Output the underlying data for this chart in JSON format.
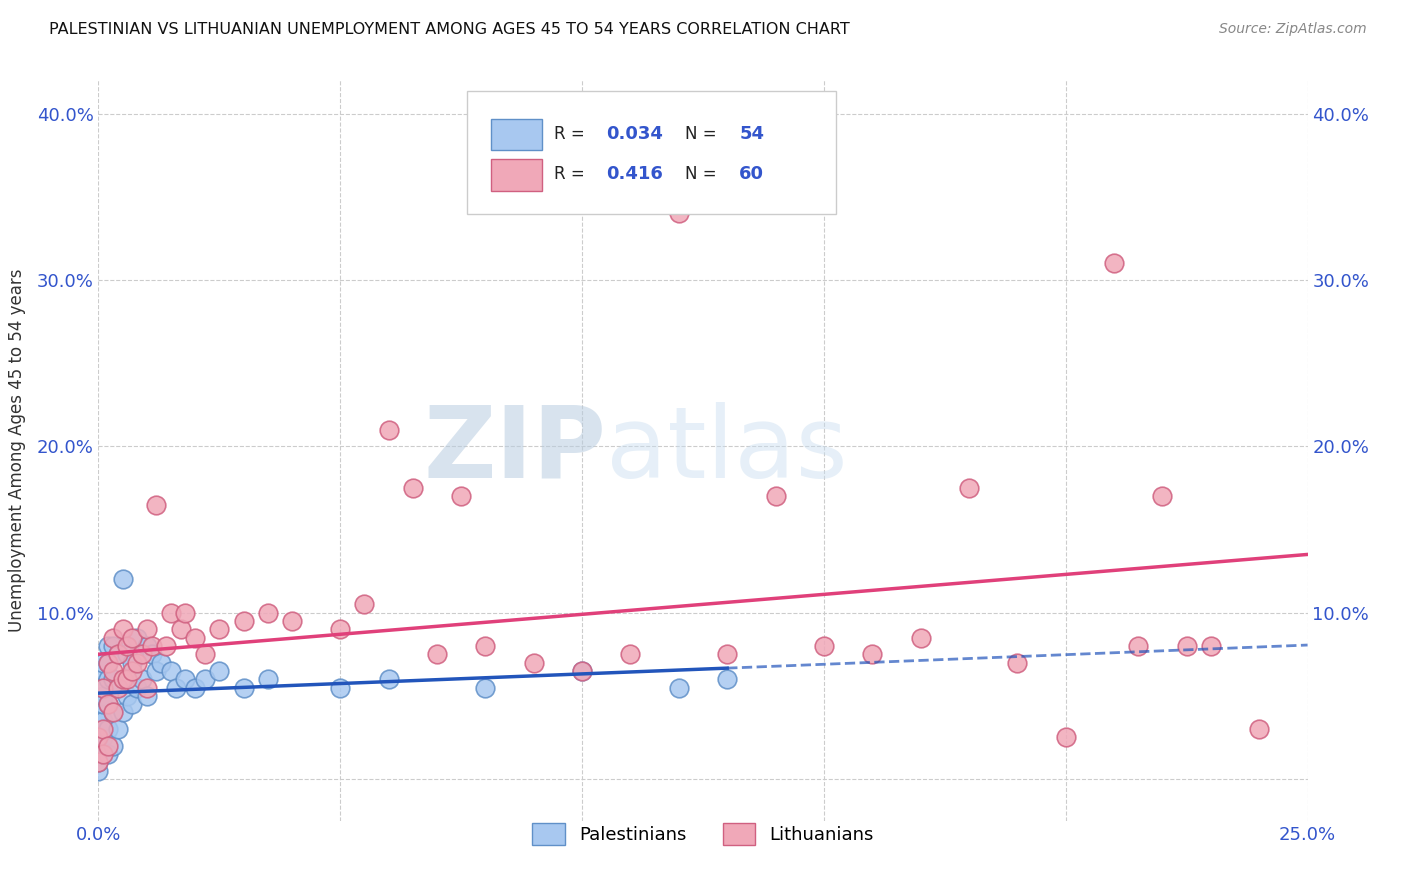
{
  "title": "PALESTINIAN VS LITHUANIAN UNEMPLOYMENT AMONG AGES 45 TO 54 YEARS CORRELATION CHART",
  "source": "Source: ZipAtlas.com",
  "ylabel": "Unemployment Among Ages 45 to 54 years",
  "xlim": [
    0.0,
    0.25
  ],
  "ylim": [
    -0.025,
    0.42
  ],
  "xtick_positions": [
    0.0,
    0.05,
    0.1,
    0.15,
    0.2,
    0.25
  ],
  "xtick_labels": [
    "0.0%",
    "",
    "",
    "",
    "",
    "25.0%"
  ],
  "ytick_positions": [
    0.0,
    0.1,
    0.2,
    0.3,
    0.4
  ],
  "ytick_labels_left": [
    "",
    "10.0%",
    "20.0%",
    "30.0%",
    "40.0%"
  ],
  "ytick_labels_right": [
    "",
    "10.0%",
    "20.0%",
    "30.0%",
    "40.0%"
  ],
  "pal_color": "#a8c8f0",
  "pal_edge_color": "#6090c8",
  "lith_color": "#f0a8b8",
  "lith_edge_color": "#d06080",
  "pal_line_color": "#2255bb",
  "lith_line_color": "#e0407a",
  "background_color": "#ffffff",
  "grid_color": "#cccccc",
  "watermark_color": "#d0dff0",
  "legend_text_color": "#3355cc",
  "legend_label_color": "#111111",
  "title_color": "#111111",
  "source_color": "#888888",
  "tick_color": "#3355cc",
  "palestinians_x": [
    0.0,
    0.0,
    0.0,
    0.0,
    0.0,
    0.001,
    0.001,
    0.001,
    0.001,
    0.001,
    0.001,
    0.001,
    0.001,
    0.002,
    0.002,
    0.002,
    0.002,
    0.002,
    0.002,
    0.003,
    0.003,
    0.003,
    0.003,
    0.004,
    0.004,
    0.004,
    0.005,
    0.005,
    0.006,
    0.006,
    0.007,
    0.007,
    0.008,
    0.008,
    0.009,
    0.01,
    0.01,
    0.011,
    0.012,
    0.013,
    0.015,
    0.016,
    0.018,
    0.02,
    0.022,
    0.025,
    0.03,
    0.035,
    0.05,
    0.06,
    0.08,
    0.1,
    0.12,
    0.13
  ],
  "palestinians_y": [
    0.005,
    0.01,
    0.02,
    0.03,
    0.04,
    0.015,
    0.025,
    0.035,
    0.045,
    0.05,
    0.055,
    0.065,
    0.07,
    0.015,
    0.03,
    0.045,
    0.06,
    0.07,
    0.08,
    0.02,
    0.04,
    0.06,
    0.08,
    0.03,
    0.055,
    0.075,
    0.04,
    0.12,
    0.05,
    0.075,
    0.045,
    0.07,
    0.055,
    0.085,
    0.06,
    0.05,
    0.08,
    0.075,
    0.065,
    0.07,
    0.065,
    0.055,
    0.06,
    0.055,
    0.06,
    0.065,
    0.055,
    0.06,
    0.055,
    0.06,
    0.055,
    0.065,
    0.055,
    0.06
  ],
  "lithuanians_x": [
    0.0,
    0.0,
    0.001,
    0.001,
    0.001,
    0.002,
    0.002,
    0.002,
    0.003,
    0.003,
    0.003,
    0.004,
    0.004,
    0.005,
    0.005,
    0.006,
    0.006,
    0.007,
    0.007,
    0.008,
    0.009,
    0.01,
    0.01,
    0.011,
    0.012,
    0.014,
    0.015,
    0.017,
    0.018,
    0.02,
    0.022,
    0.025,
    0.03,
    0.035,
    0.04,
    0.05,
    0.055,
    0.06,
    0.065,
    0.07,
    0.075,
    0.08,
    0.09,
    0.1,
    0.11,
    0.12,
    0.13,
    0.14,
    0.15,
    0.16,
    0.17,
    0.18,
    0.19,
    0.2,
    0.21,
    0.215,
    0.22,
    0.225,
    0.23,
    0.24
  ],
  "lithuanians_y": [
    0.01,
    0.025,
    0.015,
    0.03,
    0.055,
    0.02,
    0.045,
    0.07,
    0.04,
    0.065,
    0.085,
    0.055,
    0.075,
    0.06,
    0.09,
    0.06,
    0.08,
    0.065,
    0.085,
    0.07,
    0.075,
    0.055,
    0.09,
    0.08,
    0.165,
    0.08,
    0.1,
    0.09,
    0.1,
    0.085,
    0.075,
    0.09,
    0.095,
    0.1,
    0.095,
    0.09,
    0.105,
    0.21,
    0.175,
    0.075,
    0.17,
    0.08,
    0.07,
    0.065,
    0.075,
    0.34,
    0.075,
    0.17,
    0.08,
    0.075,
    0.085,
    0.175,
    0.07,
    0.025,
    0.31,
    0.08,
    0.17,
    0.08,
    0.08,
    0.03
  ]
}
